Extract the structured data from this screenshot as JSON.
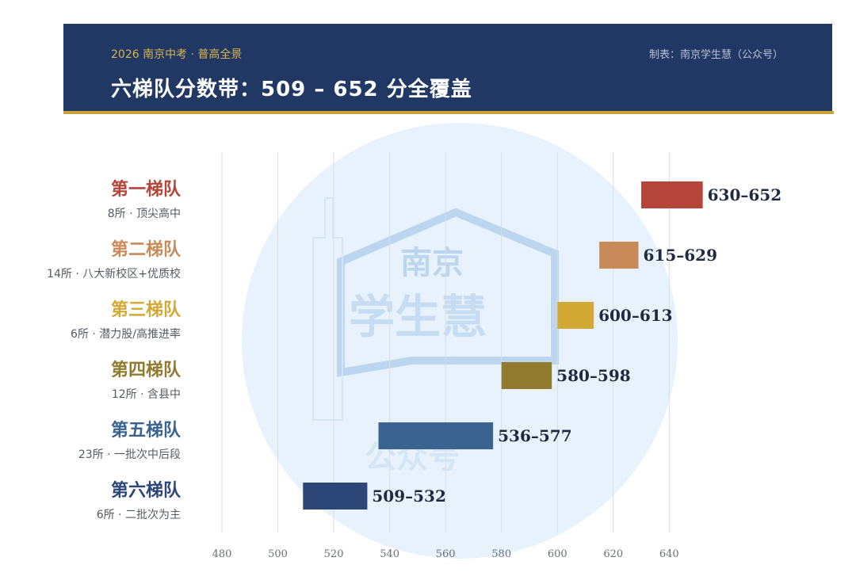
{
  "header": {
    "kicker": "2026 南京中考 · 普高全景",
    "title": "六梯队分数带：509 – 652 分全覆盖",
    "maker": "制表：南京学生慧（公众号）"
  },
  "watermark": {
    "line1": "南京",
    "line2": "学生慧",
    "line3": "公众号"
  },
  "chart_data": {
    "type": "bar",
    "orientation": "horizontal-range",
    "title": "六梯队分数带：509 – 652 分全覆盖",
    "xlim": [
      480,
      650
    ],
    "xticks": [
      480,
      500,
      520,
      540,
      560,
      580,
      600,
      620,
      640
    ],
    "grid": true,
    "series": [
      {
        "name": "第一梯队",
        "sub": "8所 · 顶尖高中",
        "start": 630,
        "end": 652,
        "label": "630–652",
        "color": "#b5453a"
      },
      {
        "name": "第二梯队",
        "sub": "14所 · 八大新校区+优质校",
        "start": 615,
        "end": 629,
        "label": "615–629",
        "color": "#c98a5a"
      },
      {
        "name": "第三梯队",
        "sub": "6所 · 潜力股/高推进率",
        "start": 600,
        "end": 613,
        "label": "600–613",
        "color": "#d2a934"
      },
      {
        "name": "第四梯队",
        "sub": "12所 · 含县中",
        "start": 580,
        "end": 598,
        "label": "580–598",
        "color": "#8f7a2e"
      },
      {
        "name": "第五梯队",
        "sub": "23所 · 一批次中后段",
        "start": 536,
        "end": 577,
        "label": "536–577",
        "color": "#3a6391"
      },
      {
        "name": "第六梯队",
        "sub": "6所 · 二批次为主",
        "start": 509,
        "end": 532,
        "label": "509–532",
        "color": "#2c4677"
      }
    ],
    "name_colors": [
      "#b5453a",
      "#c98a5a",
      "#d2a934",
      "#8f7a2e",
      "#3a6391",
      "#2c4677"
    ]
  }
}
